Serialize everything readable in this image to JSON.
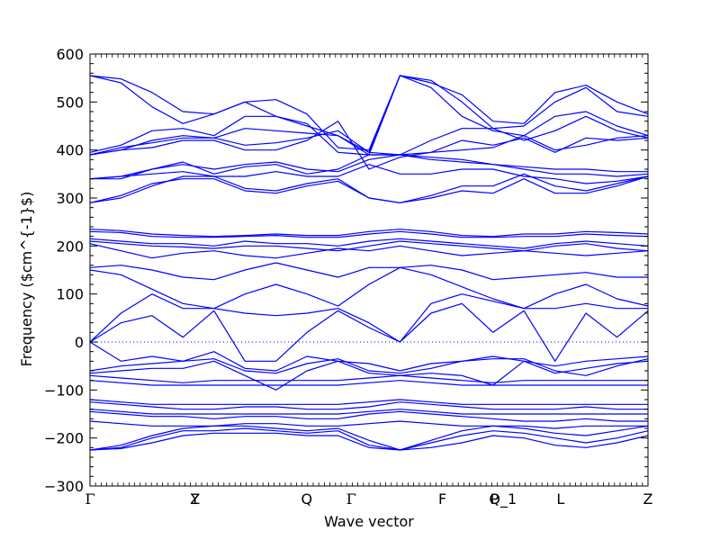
{
  "chart_data": {
    "type": "line",
    "xlabel": "Wave vector",
    "ylabel": "Frequency ($cm^{-1}$)",
    "ylim": [
      -300,
      600
    ],
    "yticks": [
      -300,
      -200,
      -100,
      0,
      100,
      200,
      300,
      400,
      500,
      600
    ],
    "xlim": [
      0,
      6.0
    ],
    "high_symmetry_points": [
      {
        "label": "Γ",
        "x": 0.0
      },
      {
        "label": "Y",
        "x": 1.13
      },
      {
        "label": "Z",
        "x": 1.13
      },
      {
        "label": "Q",
        "x": 2.33
      },
      {
        "label": "Γ",
        "x": 2.81
      },
      {
        "label": "F",
        "x": 3.79
      },
      {
        "label": "P",
        "x": 4.35
      },
      {
        "label": "Q_1",
        "x": 4.44
      },
      {
        "label": "L",
        "x": 5.06
      },
      {
        "label": "Z",
        "x": 6.0
      }
    ],
    "zero_line": "dotted",
    "line_color": "#0000ff",
    "series": [
      {
        "values": [
          555,
          548,
          520,
          480,
          475,
          500,
          505,
          475,
          405,
          400,
          555,
          540,
          515,
          460,
          455,
          520,
          535,
          500,
          475
        ]
      },
      {
        "values": [
          555,
          540,
          490,
          455,
          475,
          500,
          470,
          455,
          395,
          390,
          555,
          545,
          500,
          445,
          450,
          500,
          530,
          480,
          470
        ]
      },
      {
        "values": [
          395,
          410,
          440,
          445,
          430,
          470,
          470,
          450,
          430,
          395,
          555,
          530,
          470,
          440,
          430,
          470,
          480,
          450,
          430
        ]
      },
      {
        "values": [
          390,
          400,
          420,
          430,
          425,
          445,
          440,
          435,
          430,
          390,
          390,
          420,
          445,
          445,
          420,
          440,
          470,
          440,
          425
        ]
      },
      {
        "values": [
          390,
          405,
          415,
          425,
          425,
          410,
          415,
          425,
          440,
          395,
          390,
          395,
          420,
          410,
          425,
          395,
          425,
          420,
          425
        ]
      },
      {
        "values": [
          390,
          400,
          405,
          420,
          420,
          400,
          400,
          420,
          460,
          360,
          385,
          395,
          400,
          405,
          430,
          400,
          410,
          425,
          430
        ]
      },
      {
        "values": [
          340,
          345,
          360,
          370,
          360,
          370,
          375,
          360,
          355,
          380,
          390,
          380,
          375,
          370,
          365,
          360,
          360,
          355,
          355
        ]
      },
      {
        "values": [
          340,
          340,
          360,
          375,
          350,
          365,
          370,
          350,
          360,
          390,
          390,
          385,
          380,
          370,
          360,
          350,
          350,
          345,
          350
        ]
      },
      {
        "values": [
          340,
          345,
          350,
          355,
          345,
          345,
          355,
          345,
          345,
          370,
          350,
          350,
          360,
          360,
          345,
          340,
          330,
          335,
          345
        ]
      },
      {
        "values": [
          290,
          300,
          325,
          345,
          345,
          320,
          315,
          330,
          340,
          300,
          290,
          305,
          325,
          325,
          350,
          325,
          315,
          330,
          345
        ]
      },
      {
        "values": [
          290,
          305,
          330,
          340,
          340,
          315,
          310,
          325,
          335,
          300,
          290,
          300,
          315,
          310,
          340,
          310,
          310,
          325,
          345
        ]
      },
      {
        "values": [
          235,
          232,
          225,
          222,
          220,
          222,
          225,
          222,
          222,
          230,
          235,
          230,
          222,
          220,
          225,
          225,
          230,
          228,
          225
        ]
      },
      {
        "values": [
          230,
          228,
          220,
          218,
          218,
          220,
          222,
          218,
          218,
          225,
          230,
          225,
          218,
          218,
          220,
          220,
          225,
          222,
          220
        ]
      },
      {
        "values": [
          215,
          210,
          205,
          205,
          200,
          210,
          205,
          205,
          200,
          210,
          215,
          210,
          205,
          200,
          195,
          205,
          210,
          205,
          200
        ]
      },
      {
        "values": [
          210,
          205,
          200,
          198,
          195,
          200,
          200,
          195,
          190,
          200,
          210,
          205,
          200,
          195,
          190,
          200,
          205,
          195,
          190
        ]
      },
      {
        "values": [
          205,
          190,
          175,
          185,
          190,
          180,
          175,
          185,
          195,
          190,
          200,
          190,
          180,
          185,
          190,
          185,
          180,
          185,
          190
        ]
      },
      {
        "values": [
          155,
          160,
          150,
          135,
          130,
          150,
          165,
          150,
          135,
          155,
          155,
          160,
          150,
          130,
          135,
          140,
          145,
          135,
          135
        ]
      },
      {
        "values": [
          150,
          140,
          110,
          80,
          70,
          100,
          120,
          100,
          75,
          120,
          155,
          140,
          115,
          90,
          70,
          100,
          120,
          90,
          75
        ]
      },
      {
        "values": [
          0,
          60,
          100,
          70,
          70,
          60,
          55,
          60,
          70,
          40,
          0,
          80,
          100,
          85,
          70,
          70,
          80,
          70,
          70
        ]
      },
      {
        "values": [
          0,
          40,
          55,
          10,
          65,
          -40,
          -40,
          20,
          65,
          30,
          0,
          60,
          80,
          20,
          65,
          -40,
          60,
          10,
          65
        ]
      },
      {
        "values": [
          0,
          -40,
          -30,
          -40,
          -20,
          -55,
          -60,
          -30,
          -40,
          -45,
          -60,
          -45,
          -40,
          -30,
          -40,
          -50,
          -40,
          -35,
          -30
        ]
      },
      {
        "values": [
          -60,
          -50,
          -45,
          -40,
          -35,
          -60,
          -65,
          -45,
          -35,
          -60,
          -65,
          -55,
          -40,
          -35,
          -35,
          -60,
          -70,
          -50,
          -35
        ]
      },
      {
        "values": [
          -65,
          -60,
          -55,
          -55,
          -40,
          -70,
          -100,
          -60,
          -40,
          -65,
          -70,
          -65,
          -70,
          -90,
          -40,
          -65,
          -55,
          -45,
          -40
        ]
      },
      {
        "values": [
          -70,
          -75,
          -80,
          -85,
          -80,
          -80,
          -80,
          -80,
          -80,
          -75,
          -70,
          -75,
          -80,
          -85,
          -80,
          -80,
          -80,
          -80,
          -80
        ]
      },
      {
        "values": [
          -80,
          -85,
          -90,
          -90,
          -90,
          -90,
          -90,
          -90,
          -90,
          -85,
          -80,
          -85,
          -90,
          -90,
          -90,
          -90,
          -90,
          -90,
          -90
        ]
      },
      {
        "values": [
          -120,
          -125,
          -130,
          -130,
          -130,
          -130,
          -130,
          -130,
          -130,
          -125,
          -120,
          -125,
          -130,
          -130,
          -130,
          -130,
          -130,
          -130,
          -130
        ]
      },
      {
        "values": [
          -125,
          -130,
          -135,
          -140,
          -140,
          -135,
          -135,
          -140,
          -140,
          -135,
          -125,
          -130,
          -135,
          -140,
          -140,
          -140,
          -135,
          -140,
          -140
        ]
      },
      {
        "values": [
          -140,
          -145,
          -150,
          -150,
          -150,
          -150,
          -150,
          -150,
          -150,
          -145,
          -140,
          -145,
          -150,
          -150,
          -150,
          -150,
          -150,
          -150,
          -150
        ]
      },
      {
        "values": [
          -145,
          -150,
          -155,
          -155,
          -160,
          -155,
          -155,
          -160,
          -160,
          -150,
          -145,
          -150,
          -155,
          -160,
          -165,
          -165,
          -160,
          -165,
          -165
        ]
      },
      {
        "values": [
          -165,
          -170,
          -175,
          -175,
          -175,
          -170,
          -170,
          -175,
          -175,
          -170,
          -165,
          -170,
          -175,
          -175,
          -175,
          -180,
          -175,
          -175,
          -175
        ]
      },
      {
        "values": [
          -225,
          -215,
          -195,
          -180,
          -175,
          -175,
          -180,
          -185,
          -180,
          -205,
          -225,
          -205,
          -185,
          -175,
          -180,
          -190,
          -195,
          -185,
          -175
        ]
      },
      {
        "values": [
          -225,
          -220,
          -200,
          -185,
          -185,
          -180,
          -185,
          -190,
          -185,
          -215,
          -225,
          -210,
          -195,
          -185,
          -190,
          -200,
          -210,
          -200,
          -185
        ]
      },
      {
        "values": [
          -225,
          -222,
          -210,
          -195,
          -190,
          -190,
          -190,
          -195,
          -195,
          -220,
          -225,
          -220,
          -210,
          -195,
          -200,
          -215,
          -220,
          -210,
          -195
        ]
      }
    ]
  }
}
